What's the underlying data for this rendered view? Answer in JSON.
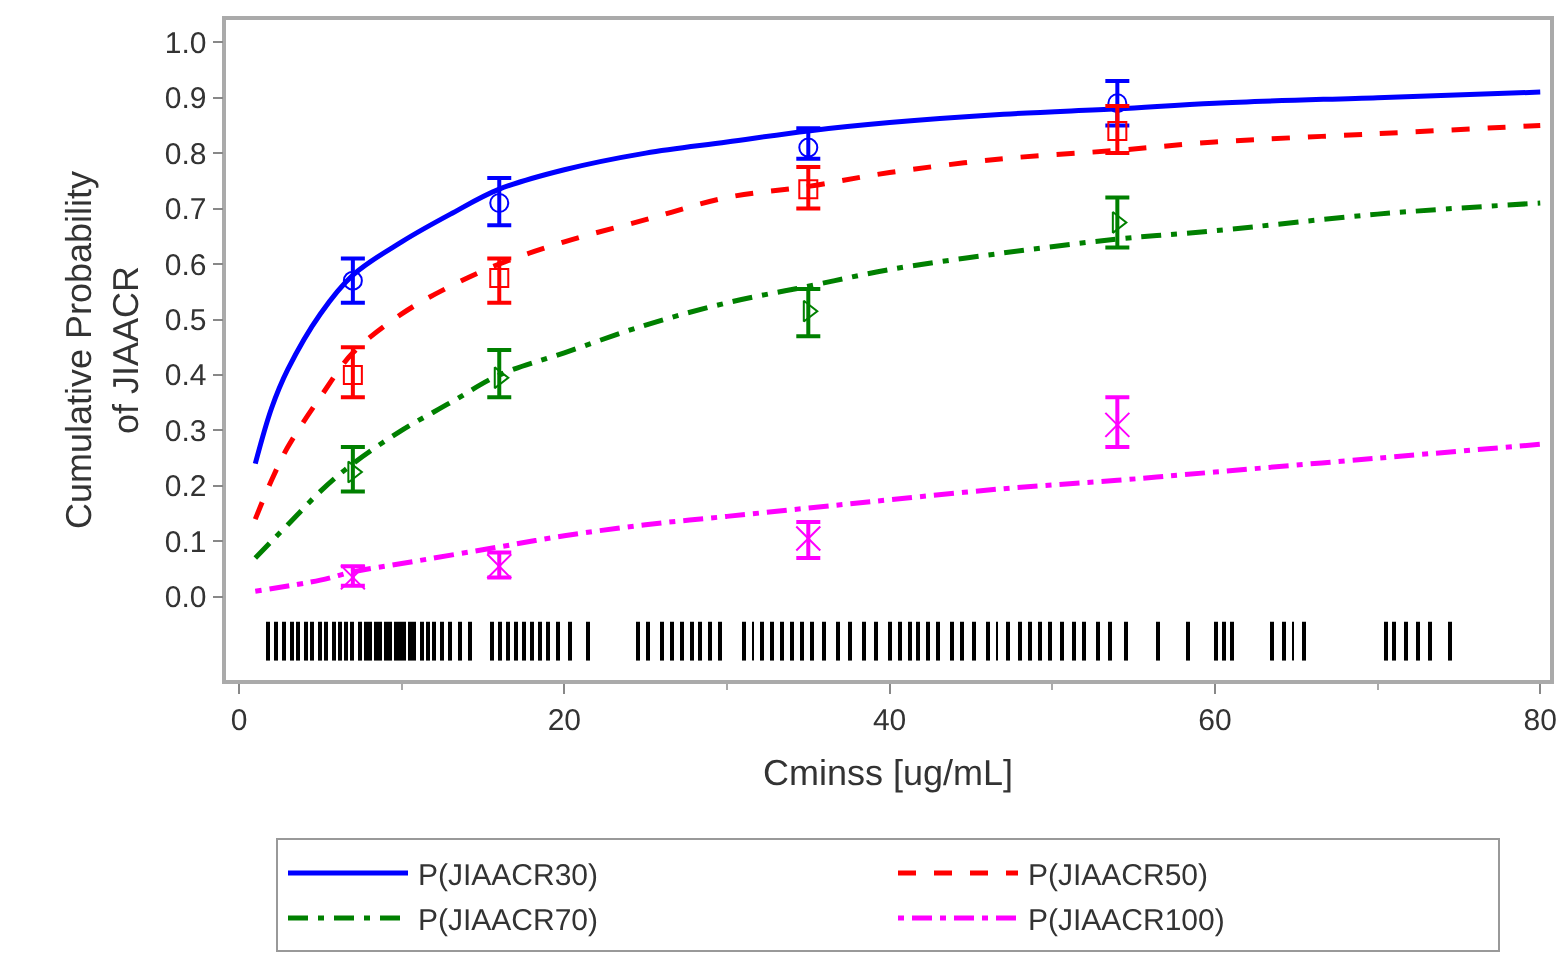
{
  "chart_data": {
    "type": "line",
    "xlabel": "Cminss [ug/mL]",
    "ylabel": "Cumulative Probability\nof JIAACR",
    "xlim": [
      -0.8,
      80.6
    ],
    "xticks": [
      0,
      20,
      40,
      60,
      80
    ],
    "ylim": [
      -0.15,
      1.04
    ],
    "yticks": [
      {
        "value": 0,
        "label": "0.0"
      },
      {
        "value": 0.1,
        "label": "0.1"
      },
      {
        "value": 0.2,
        "label": "0.2"
      },
      {
        "value": 0.3,
        "label": "0.3"
      },
      {
        "value": 0.4,
        "label": "0.4"
      },
      {
        "value": 0.5,
        "label": "0.5"
      },
      {
        "value": 0.6,
        "label": "0.6"
      },
      {
        "value": 0.7,
        "label": "0.7"
      },
      {
        "value": 0.8,
        "label": "0.8"
      },
      {
        "value": 0.9,
        "label": "0.9"
      },
      {
        "value": 1,
        "label": "1.0"
      }
    ],
    "grid": false,
    "legend": "bottom",
    "marker": "none",
    "series": [
      {
        "name": "P(JIAACR30)",
        "color": "#0000ff",
        "line_style": "solid",
        "x": [
          1,
          2,
          3,
          5,
          7,
          10,
          13,
          16,
          20,
          25,
          30,
          35,
          40,
          47,
          54,
          60,
          70,
          80
        ],
        "values": [
          0.24,
          0.34,
          0.41,
          0.51,
          0.58,
          0.64,
          0.69,
          0.735,
          0.77,
          0.8,
          0.82,
          0.84,
          0.855,
          0.87,
          0.88,
          0.89,
          0.9,
          0.91
        ]
      },
      {
        "name": "P(JIAACR50)",
        "color": "#ff0000",
        "line_style": "dashed",
        "x": [
          1,
          2,
          3,
          5,
          7,
          10,
          13,
          16,
          20,
          25,
          30,
          35,
          40,
          47,
          54,
          60,
          70,
          80
        ],
        "values": [
          0.14,
          0.21,
          0.27,
          0.36,
          0.44,
          0.51,
          0.56,
          0.6,
          0.64,
          0.68,
          0.72,
          0.74,
          0.765,
          0.79,
          0.805,
          0.82,
          0.835,
          0.85
        ]
      },
      {
        "name": "P(JIAACR70)",
        "color": "#008000",
        "line_style": "dashed",
        "x": [
          1,
          2,
          3,
          5,
          7,
          10,
          13,
          16,
          20,
          25,
          30,
          35,
          40,
          47,
          54,
          60,
          70,
          80
        ],
        "values": [
          0.07,
          0.1,
          0.13,
          0.19,
          0.24,
          0.3,
          0.35,
          0.4,
          0.44,
          0.49,
          0.53,
          0.56,
          0.59,
          0.62,
          0.645,
          0.66,
          0.69,
          0.71
        ]
      },
      {
        "name": "P(JIAACR100)",
        "color": "#ff00ff",
        "line_style": "dashed",
        "x": [
          1,
          5,
          7,
          10,
          16,
          20,
          25,
          30,
          35,
          40,
          47,
          54,
          60,
          70,
          80
        ],
        "values": [
          0.01,
          0.03,
          0.045,
          0.06,
          0.09,
          0.11,
          0.13,
          0.145,
          0.16,
          0.175,
          0.195,
          0.21,
          0.225,
          0.25,
          0.275
        ]
      },
      {
        "type": "scatter",
        "marker": "circle",
        "color": "#0000ff",
        "x": [
          7,
          16,
          35,
          54
        ],
        "values": [
          0.57,
          0.71,
          0.81,
          0.89
        ],
        "errors": [
          [
            0.53,
            0.61
          ],
          [
            0.67,
            0.755
          ],
          [
            0.79,
            0.845
          ],
          [
            0.85,
            0.93
          ]
        ]
      },
      {
        "type": "scatter",
        "marker": "square",
        "color": "#ff0000",
        "x": [
          7,
          16,
          35,
          54
        ],
        "values": [
          0.4,
          0.575,
          0.735,
          0.84
        ],
        "errors": [
          [
            0.36,
            0.45
          ],
          [
            0.53,
            0.61
          ],
          [
            0.7,
            0.775
          ],
          [
            0.8,
            0.885
          ]
        ]
      },
      {
        "type": "scatter",
        "marker": "triangle",
        "color": "#008000",
        "x": [
          7,
          16,
          35,
          54
        ],
        "values": [
          0.225,
          0.395,
          0.515,
          0.675
        ],
        "errors": [
          [
            0.19,
            0.27
          ],
          [
            0.36,
            0.445
          ],
          [
            0.47,
            0.555
          ],
          [
            0.63,
            0.72
          ]
        ]
      },
      {
        "type": "scatter",
        "marker": "cross",
        "color": "#ff00ff",
        "x": [
          7,
          16,
          35,
          54
        ],
        "values": [
          0.035,
          0.055,
          0.105,
          0.31
        ],
        "errors": [
          [
            0.02,
            0.055
          ],
          [
            0.035,
            0.08
          ],
          [
            0.07,
            0.135
          ],
          [
            0.27,
            0.36
          ]
        ]
      },
      {
        "type": "bar",
        "color": "#000000",
        "base": [
          -0.115,
          -0.115,
          -0.115,
          -0.115,
          -0.115,
          -0.115,
          -0.115,
          -0.115,
          -0.115,
          -0.115,
          -0.115,
          -0.115,
          -0.115,
          -0.115,
          -0.115,
          -0.115,
          -0.115,
          -0.115,
          -0.115,
          -0.115,
          -0.115,
          -0.115,
          -0.115,
          -0.115,
          -0.115,
          -0.115,
          -0.115,
          -0.115,
          -0.115,
          -0.115,
          -0.115,
          -0.115,
          -0.115,
          -0.115,
          -0.115,
          -0.115,
          -0.115,
          -0.115,
          -0.115,
          -0.115,
          -0.115,
          -0.115,
          -0.115,
          -0.115,
          -0.115,
          -0.115,
          -0.115,
          -0.115,
          -0.115,
          -0.115,
          -0.115,
          -0.115,
          -0.115,
          -0.115,
          -0.115,
          -0.115,
          -0.115,
          -0.115,
          -0.115,
          -0.115,
          -0.115,
          -0.115,
          -0.115,
          -0.115,
          -0.115,
          -0.115,
          -0.115,
          -0.115,
          -0.115,
          -0.115,
          -0.115,
          -0.115,
          -0.115,
          -0.115,
          -0.115,
          -0.115,
          -0.115,
          -0.115,
          -0.115,
          -0.115,
          -0.115,
          -0.115,
          -0.115,
          -0.115,
          -0.115,
          -0.115,
          -0.115,
          -0.115,
          -0.115,
          -0.115,
          -0.115,
          -0.115,
          -0.115,
          -0.115,
          -0.115,
          -0.115,
          -0.115,
          -0.115,
          -0.115,
          -0.115,
          -0.115,
          -0.115
        ],
        "x": [
          1.8,
          2.3,
          2.8,
          3.2,
          3.6,
          4.1,
          4.5,
          5.0,
          5.4,
          5.8,
          6.2,
          6.6,
          7.0,
          7.4,
          7.8,
          8.1,
          8.4,
          8.7,
          9.0,
          9.3,
          9.6,
          9.9,
          10.2,
          10.5,
          10.8,
          11.2,
          11.6,
          12.0,
          12.5,
          13.0,
          13.6,
          14.2,
          15.5,
          16.0,
          16.5,
          17.0,
          17.5,
          18.0,
          18.5,
          19.0,
          19.6,
          20.3,
          21.5,
          24.5,
          25.2,
          26.0,
          26.6,
          27.2,
          27.8,
          28.4,
          29.0,
          29.6,
          31.0,
          31.6,
          32.2,
          32.8,
          33.4,
          34.0,
          34.6,
          35.2,
          36.0,
          36.8,
          37.6,
          38.4,
          39.2,
          40.0,
          40.6,
          41.2,
          41.8,
          42.4,
          43.0,
          43.8,
          44.5,
          45.2,
          46.0,
          46.6,
          47.3,
          48.0,
          48.6,
          49.2,
          49.9,
          50.6,
          51.3,
          52.0,
          52.8,
          53.6,
          54.5,
          56.5,
          58.3,
          60.1,
          60.6,
          61.0,
          63.5,
          64.2,
          64.8,
          65.5,
          70.5,
          71.0,
          71.8,
          72.5,
          73.2,
          74.4
        ],
        "values": [
          0.07,
          0.07,
          0.07,
          0.07,
          0.07,
          0.07,
          0.07,
          0.07,
          0.07,
          0.07,
          0.07,
          0.07,
          0.07,
          0.07,
          0.07,
          0.07,
          0.07,
          0.07,
          0.07,
          0.07,
          0.07,
          0.07,
          0.07,
          0.07,
          0.07,
          0.07,
          0.07,
          0.07,
          0.07,
          0.07,
          0.07,
          0.07,
          0.07,
          0.07,
          0.07,
          0.07,
          0.07,
          0.07,
          0.07,
          0.07,
          0.07,
          0.07,
          0.07,
          0.07,
          0.07,
          0.07,
          0.07,
          0.07,
          0.07,
          0.07,
          0.07,
          0.07,
          0.07,
          0.07,
          0.07,
          0.07,
          0.07,
          0.07,
          0.07,
          0.07,
          0.07,
          0.07,
          0.07,
          0.07,
          0.07,
          0.07,
          0.07,
          0.07,
          0.07,
          0.07,
          0.07,
          0.07,
          0.07,
          0.07,
          0.07,
          0.07,
          0.07,
          0.07,
          0.07,
          0.07,
          0.07,
          0.07,
          0.07,
          0.07,
          0.07,
          0.07,
          0.07,
          0.07,
          0.07,
          0.07,
          0.07,
          0.07,
          0.07,
          0.07,
          0.07,
          0.07,
          0.07,
          0.07,
          0.07,
          0.07,
          0.07,
          0.07
        ]
      }
    ]
  }
}
